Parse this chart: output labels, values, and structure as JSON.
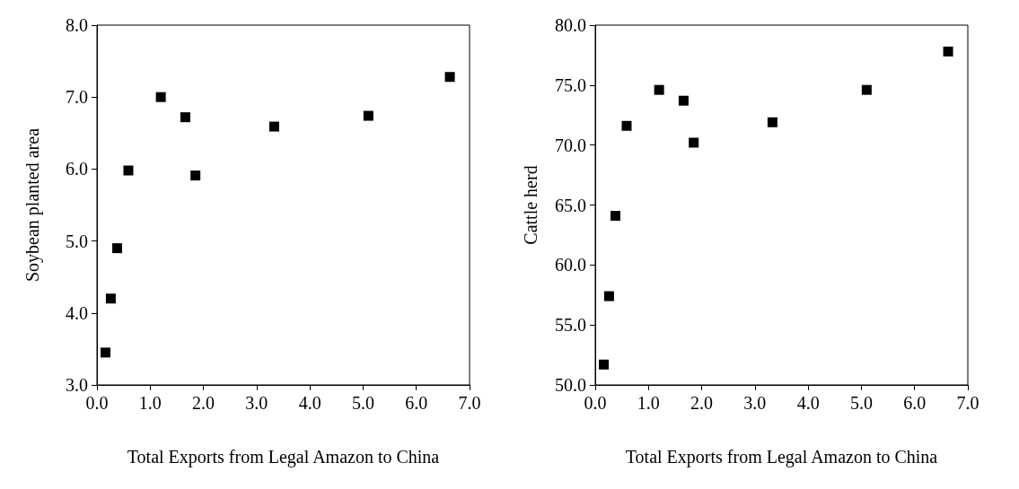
{
  "chart_data": [
    {
      "type": "scatter",
      "xlabel": "Total Exports from Legal Amazon to China",
      "ylabel": "Soybean planted area",
      "marker": "square",
      "grid": false,
      "x": [
        0.16,
        0.26,
        0.38,
        0.59,
        1.2,
        1.66,
        1.85,
        3.33,
        5.1,
        6.63
      ],
      "series": [
        {
          "color": "#000000",
          "values": [
            3.45,
            4.2,
            4.9,
            5.98,
            7.0,
            6.72,
            5.91,
            6.59,
            6.74,
            7.28
          ]
        }
      ],
      "xlim": [
        0,
        7
      ],
      "xticks": [
        {
          "value": 0,
          "label": "0.0"
        },
        {
          "value": 1,
          "label": "1.0"
        },
        {
          "value": 2,
          "label": "2.0"
        },
        {
          "value": 3,
          "label": "3.0"
        },
        {
          "value": 4,
          "label": "4.0"
        },
        {
          "value": 5,
          "label": "5.0"
        },
        {
          "value": 6,
          "label": "6.0"
        },
        {
          "value": 7,
          "label": "7.0"
        }
      ],
      "ylim": [
        3,
        8
      ],
      "yticks": [
        {
          "value": 3,
          "label": "3.0"
        },
        {
          "value": 4,
          "label": "4.0"
        },
        {
          "value": 5,
          "label": "5.0"
        },
        {
          "value": 6,
          "label": "6.0"
        },
        {
          "value": 7,
          "label": "7.0"
        },
        {
          "value": 8,
          "label": "8.0"
        }
      ]
    },
    {
      "type": "scatter",
      "xlabel": "Total Exports from Legal Amazon to China",
      "ylabel": "Cattle herd",
      "marker": "square",
      "grid": false,
      "x": [
        0.16,
        0.26,
        0.38,
        0.59,
        1.2,
        1.66,
        1.85,
        3.33,
        5.1,
        6.63
      ],
      "series": [
        {
          "color": "#000000",
          "values": [
            51.7,
            57.4,
            64.1,
            71.6,
            74.6,
            73.7,
            70.2,
            71.9,
            74.6,
            77.8
          ]
        }
      ],
      "xlim": [
        0,
        7
      ],
      "xticks": [
        {
          "value": 0,
          "label": "0.0"
        },
        {
          "value": 1,
          "label": "1.0"
        },
        {
          "value": 2,
          "label": "2.0"
        },
        {
          "value": 3,
          "label": "3.0"
        },
        {
          "value": 4,
          "label": "4.0"
        },
        {
          "value": 5,
          "label": "5.0"
        },
        {
          "value": 6,
          "label": "6.0"
        },
        {
          "value": 7,
          "label": "7.0"
        }
      ],
      "ylim": [
        50,
        80
      ],
      "yticks": [
        {
          "value": 50,
          "label": "50.0"
        },
        {
          "value": 55,
          "label": "55.0"
        },
        {
          "value": 60,
          "label": "60.0"
        },
        {
          "value": 65,
          "label": "65.0"
        },
        {
          "value": 70,
          "label": "70.0"
        },
        {
          "value": 75,
          "label": "75.0"
        },
        {
          "value": 80,
          "label": "80.0"
        }
      ]
    }
  ]
}
